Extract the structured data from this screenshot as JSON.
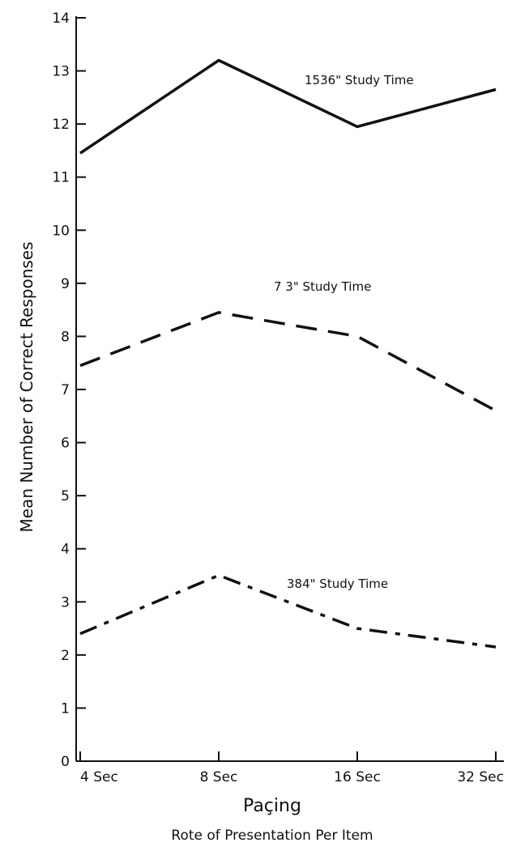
{
  "chart_data": {
    "type": "line",
    "title": "",
    "xlabel": "Paçing",
    "xlabel_sub": "Rote of Presentation Per Item",
    "ylabel": "Mean Number of Correct Responses",
    "categories": [
      "4 Sec",
      "8 Sec",
      "16 Sec",
      "32 Sec"
    ],
    "ylim": [
      0,
      14
    ],
    "yticks": [
      "0",
      "1",
      "2",
      "3",
      "4",
      "5",
      "6",
      "7",
      "8",
      "9",
      "10",
      "11",
      "12",
      "13",
      "14"
    ],
    "grid": false,
    "legend": "none",
    "series": [
      {
        "name": "1536\" Study Time",
        "style": "solid",
        "values": [
          11.45,
          13.2,
          11.95,
          12.65
        ]
      },
      {
        "name": "7 3\" Study Time",
        "style": "dashed",
        "values": [
          7.45,
          8.45,
          8.0,
          6.6
        ]
      },
      {
        "name": "384\" Study Time",
        "style": "dash-dot",
        "values": [
          2.4,
          3.5,
          2.5,
          2.15
        ]
      }
    ]
  }
}
